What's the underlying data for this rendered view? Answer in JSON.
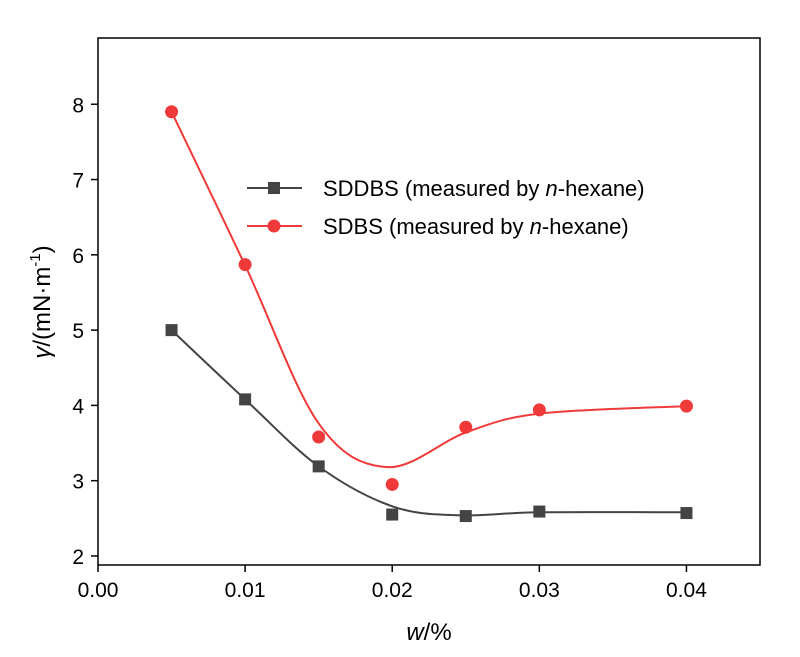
{
  "chart_data": {
    "type": "line",
    "xlabel": {
      "italic": "w",
      "rest": "/%"
    },
    "ylabel": {
      "italic": "γ",
      "rest": "/(mN·m",
      "sup": "-1",
      "close": ")"
    },
    "xlim": [
      0,
      0.045
    ],
    "ylim": [
      1.88,
      8.88
    ],
    "xticks": [
      "0.00",
      "0.01",
      "0.02",
      "0.03",
      "0.04"
    ],
    "xtick_values": [
      0,
      0.01,
      0.02,
      0.03,
      0.04
    ],
    "yticks": [
      "2",
      "3",
      "4",
      "5",
      "6",
      "7",
      "8"
    ],
    "ytick_values": [
      2,
      3,
      4,
      5,
      6,
      7,
      8
    ],
    "grid": false,
    "legend_placement": "top-right",
    "series": [
      {
        "name": {
          "pre": "SDDBS (measured by ",
          "italic": "n",
          "post": "-hexane)"
        },
        "marker": "square",
        "color": "#444444",
        "x": [
          0.005,
          0.01,
          0.015,
          0.02,
          0.025,
          0.03,
          0.04
        ],
        "y": [
          5.0,
          4.08,
          3.19,
          2.55,
          2.53,
          2.59,
          2.57
        ],
        "fit": [
          [
            0.005,
            5.0
          ],
          [
            0.01,
            4.08
          ],
          [
            0.015,
            3.19
          ],
          [
            0.02,
            2.66
          ],
          [
            0.0245,
            2.54
          ],
          [
            0.03,
            2.58
          ],
          [
            0.04,
            2.58
          ]
        ]
      },
      {
        "name": {
          "pre": "SDBS (measured by ",
          "italic": "n",
          "post": "-hexane)"
        },
        "marker": "circle",
        "color": "#f03a3a",
        "x": [
          0.005,
          0.01,
          0.015,
          0.02,
          0.025,
          0.03,
          0.04
        ],
        "y": [
          7.9,
          5.87,
          3.58,
          2.95,
          3.71,
          3.94,
          3.99
        ],
        "fit": [
          [
            0.005,
            7.9
          ],
          [
            0.01,
            5.86
          ],
          [
            0.015,
            3.76
          ],
          [
            0.0197,
            3.18
          ],
          [
            0.025,
            3.64
          ],
          [
            0.03,
            3.89
          ],
          [
            0.04,
            3.99
          ]
        ]
      }
    ]
  }
}
